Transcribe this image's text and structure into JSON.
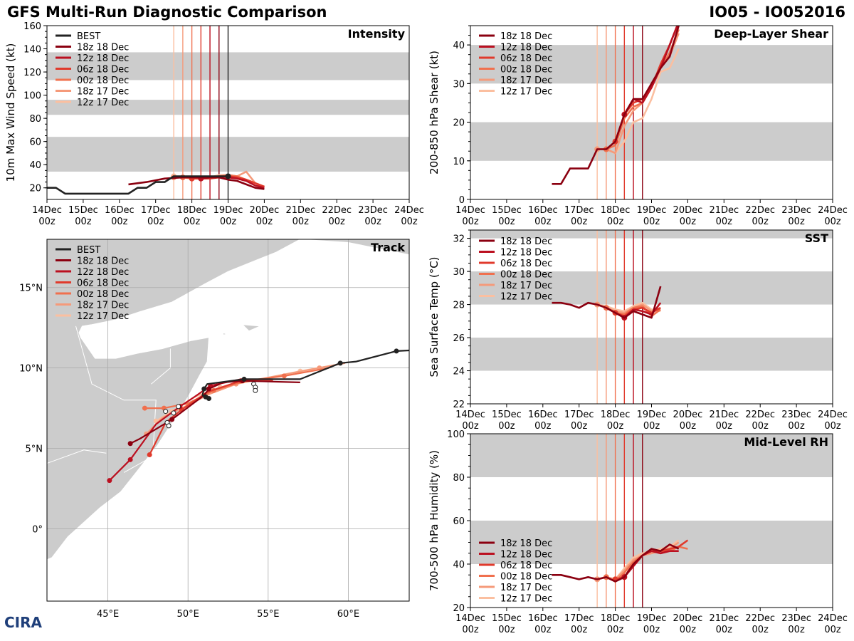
{
  "header": {
    "title": "GFS Multi-Run Diagnostic Comparison",
    "storm": "IO05 - IO052016"
  },
  "logo": {
    "text": "CIRA"
  },
  "colors": {
    "best": "#222222",
    "runs": [
      "#8b0010",
      "#bb1020",
      "#e03a2c",
      "#f0704e",
      "#f59a7a",
      "#fbbfa0"
    ],
    "band": "#cccccc"
  },
  "time_ticks": [
    "14Dec\n00z",
    "15Dec\n00z",
    "16Dec\n00z",
    "17Dec\n00z",
    "18Dec\n00z",
    "19Dec\n00z",
    "20Dec\n00z",
    "21Dec\n00z",
    "22Dec\n00z",
    "23Dec\n00z",
    "24Dec\n00z"
  ],
  "run_labels": [
    "18z 18 Dec",
    "12z 18 Dec",
    "06z 18 Dec",
    "00z 18 Dec",
    "18z 17 Dec",
    "12z 17 Dec"
  ],
  "chart_data": [
    {
      "id": "intensity",
      "type": "line",
      "title": "Intensity",
      "xlabel": "",
      "ylabel": "10m Max Wind Speed (kt)",
      "xlim": [
        0,
        10
      ],
      "ylim": [
        10,
        160
      ],
      "yticks": [
        20,
        40,
        60,
        80,
        100,
        120,
        140,
        160
      ],
      "bands": [
        [
          34,
          64
        ],
        [
          83,
          96
        ],
        [
          113,
          137
        ]
      ],
      "init_lines_days": [
        3.5,
        3.75,
        4.0,
        4.25,
        4.5,
        4.75
      ],
      "best_marker_day": 5.0,
      "legend_labels": [
        "BEST",
        "18z 18 Dec",
        "12z 18 Dec",
        "06z 18 Dec",
        "00z 18 Dec",
        "18z 17 Dec",
        "12z 17 Dec"
      ],
      "series": [
        {
          "name": "BEST",
          "x": [
            0,
            0.25,
            0.5,
            1.0,
            1.5,
            2.0,
            2.25,
            2.5,
            2.75,
            3.0,
            3.25,
            3.5,
            3.75,
            4.0,
            4.25,
            4.5,
            4.75,
            5.0
          ],
          "values": [
            20,
            20,
            15,
            15,
            15,
            15,
            15,
            20,
            20,
            25,
            25,
            30,
            30,
            30,
            30,
            30,
            30,
            30
          ]
        },
        {
          "name": "18z 18 Dec",
          "x": [
            2.25,
            2.75,
            3.25,
            3.75,
            4.25,
            4.75,
            5.0,
            5.25,
            5.5,
            5.75,
            6.0
          ],
          "values": [
            23,
            25,
            28,
            29,
            29,
            29,
            27,
            26,
            23,
            20,
            19
          ]
        },
        {
          "name": "12z 18 Dec",
          "x": [
            4.25,
            4.5,
            4.75,
            5.0,
            5.25,
            5.5,
            5.75,
            6.0
          ],
          "values": [
            28,
            29,
            30,
            29,
            28,
            26,
            22,
            20
          ]
        },
        {
          "name": "06z 18 Dec",
          "x": [
            4.0,
            4.25,
            4.5,
            4.75,
            5.0,
            5.25,
            5.5,
            5.75,
            6.0
          ],
          "values": [
            28,
            28,
            28,
            29,
            30,
            29,
            27,
            24,
            21
          ]
        },
        {
          "name": "00z 18 Dec",
          "x": [
            3.75,
            4.0,
            4.25,
            4.5,
            4.75,
            5.0,
            5.25,
            5.5,
            5.75,
            6.0
          ],
          "values": [
            29,
            28,
            28,
            29,
            30,
            31,
            30,
            27,
            24,
            21
          ]
        },
        {
          "name": "18z 17 Dec",
          "x": [
            3.5,
            3.75,
            4.0,
            4.25,
            4.5,
            4.75,
            5.0,
            5.25,
            5.5,
            5.75,
            6.0
          ],
          "values": [
            29,
            29,
            29,
            29,
            29,
            30,
            31,
            30,
            34,
            24,
            21
          ]
        },
        {
          "name": "12z 17 Dec",
          "x": [
            3.5,
            3.75,
            4.0,
            4.25,
            4.5,
            4.75,
            5.0,
            5.25,
            5.5,
            5.75
          ],
          "values": [
            30,
            29,
            29,
            29,
            29,
            31,
            31,
            29,
            27,
            24
          ]
        }
      ]
    },
    {
      "id": "shear",
      "type": "line",
      "title": "Deep-Layer Shear",
      "xlabel": "",
      "ylabel": "200-850 hPa Shear (kt)",
      "xlim": [
        0,
        10
      ],
      "ylim": [
        0,
        45
      ],
      "yticks": [
        0,
        10,
        20,
        30,
        40
      ],
      "bands": [
        [
          10,
          20
        ],
        [
          30,
          40
        ]
      ],
      "init_lines_days": [
        3.5,
        3.75,
        4.0,
        4.25,
        4.5,
        4.75
      ],
      "legend_labels": [
        "18z 18 Dec",
        "12z 18 Dec",
        "06z 18 Dec",
        "00z 18 Dec",
        "18z 17 Dec",
        "12z 17 Dec"
      ],
      "series": [
        {
          "name": "18z 18 Dec",
          "x": [
            2.25,
            2.5,
            2.75,
            3.0,
            3.25,
            3.5,
            3.75,
            4.0,
            4.25,
            4.5,
            4.75,
            5.0,
            5.25,
            5.5,
            5.75
          ],
          "values": [
            4,
            4,
            8,
            8,
            8,
            13,
            13,
            15,
            22,
            26,
            26,
            30,
            34,
            37,
            45
          ]
        },
        {
          "name": "12z 18 Dec",
          "x": [
            4.25,
            4.5,
            4.75,
            5.0,
            5.25,
            5.5,
            5.75
          ],
          "values": [
            22,
            26,
            25,
            29,
            34,
            40,
            46
          ]
        },
        {
          "name": "06z 18 Dec",
          "x": [
            4.0,
            4.25,
            4.5,
            4.75,
            5.0,
            5.25,
            5.5,
            5.75
          ],
          "values": [
            15,
            22,
            25,
            26,
            29,
            35,
            40,
            46
          ]
        },
        {
          "name": "00z 18 Dec",
          "x": [
            3.75,
            4.0,
            4.25,
            4.5,
            4.75,
            5.0,
            5.25,
            5.5,
            5.75
          ],
          "values": [
            13,
            14,
            21,
            24,
            25,
            30,
            34,
            38,
            44
          ]
        },
        {
          "name": "18z 17 Dec",
          "x": [
            3.5,
            3.75,
            4.0,
            4.25,
            4.5,
            4.75,
            5.0,
            5.25,
            5.5,
            5.75
          ],
          "values": [
            13,
            13,
            12,
            19,
            23,
            25,
            29,
            34,
            37,
            43
          ]
        },
        {
          "name": "12z 17 Dec",
          "x": [
            3.5,
            3.75,
            4.0,
            4.25,
            4.5,
            4.75,
            5.0,
            5.25,
            5.5,
            5.75
          ],
          "values": [
            13,
            13,
            12,
            15,
            20,
            21,
            26,
            33,
            34,
            39
          ]
        }
      ]
    },
    {
      "id": "sst",
      "type": "line",
      "title": "SST",
      "xlabel": "",
      "ylabel": "Sea Surface Temp (°C)",
      "xlim": [
        0,
        10
      ],
      "ylim": [
        22,
        32.5
      ],
      "yticks": [
        22,
        24,
        26,
        28,
        30,
        32
      ],
      "bands": [
        [
          24,
          26
        ],
        [
          28,
          30
        ],
        [
          32,
          32.5
        ]
      ],
      "init_lines_days": [
        3.5,
        3.75,
        4.0,
        4.25,
        4.5,
        4.75
      ],
      "legend_labels": [
        "18z 18 Dec",
        "12z 18 Dec",
        "06z 18 Dec",
        "00z 18 Dec",
        "18z 17 Dec",
        "12z 17 Dec"
      ],
      "series": [
        {
          "name": "18z 18 Dec",
          "x": [
            2.25,
            2.5,
            2.75,
            3.0,
            3.25,
            3.5,
            3.75,
            4.0,
            4.25,
            4.5,
            4.75,
            5.0,
            5.25
          ],
          "values": [
            28.1,
            28.1,
            28.0,
            27.8,
            28.1,
            28.0,
            27.8,
            27.5,
            27.2,
            27.6,
            27.4,
            27.2,
            29.1
          ]
        },
        {
          "name": "12z 18 Dec",
          "x": [
            4.25,
            4.5,
            4.75,
            5.0,
            5.25
          ],
          "values": [
            27.2,
            27.7,
            27.6,
            27.4,
            28.1
          ]
        },
        {
          "name": "06z 18 Dec",
          "x": [
            4.0,
            4.25,
            4.5,
            4.75,
            5.0,
            5.25
          ],
          "values": [
            27.5,
            27.3,
            27.7,
            27.8,
            27.5,
            27.8
          ]
        },
        {
          "name": "00z 18 Dec",
          "x": [
            3.75,
            4.0,
            4.25,
            4.5,
            4.75,
            5.0,
            5.25
          ],
          "values": [
            27.8,
            27.5,
            27.4,
            27.8,
            27.9,
            27.3,
            27.7
          ]
        },
        {
          "name": "18z 17 Dec",
          "x": [
            3.5,
            3.75,
            4.0,
            4.25,
            4.5,
            4.75,
            5.0,
            5.25
          ],
          "values": [
            28.0,
            27.8,
            27.6,
            27.5,
            27.8,
            28.0,
            27.6,
            27.8
          ]
        },
        {
          "name": "12z 17 Dec",
          "x": [
            3.5,
            3.75,
            4.0,
            4.25,
            4.5,
            4.75,
            5.0,
            5.25
          ],
          "values": [
            28.0,
            27.9,
            27.7,
            27.6,
            27.9,
            28.1,
            27.7,
            27.6
          ]
        }
      ]
    },
    {
      "id": "rh",
      "type": "line",
      "title": "Mid-Level RH",
      "xlabel": "",
      "ylabel": "700-500 hPa Humidity (%)",
      "xlim": [
        0,
        10
      ],
      "ylim": [
        20,
        100
      ],
      "yticks": [
        20,
        40,
        60,
        80,
        100
      ],
      "bands": [
        [
          40,
          60
        ],
        [
          80,
          100
        ]
      ],
      "init_lines_days": [
        3.5,
        3.75,
        4.0,
        4.25,
        4.5,
        4.75
      ],
      "legend_labels": [
        "18z 18 Dec",
        "12z 18 Dec",
        "06z 18 Dec",
        "00z 18 Dec",
        "18z 17 Dec",
        "12z 17 Dec"
      ],
      "series": [
        {
          "name": "18z 18 Dec",
          "x": [
            2.25,
            2.5,
            2.75,
            3.0,
            3.25,
            3.5,
            3.75,
            4.0,
            4.25,
            4.5,
            4.75,
            5.0,
            5.25,
            5.5,
            5.75
          ],
          "values": [
            35,
            35,
            34,
            33,
            34,
            33,
            34,
            32,
            34,
            40,
            44,
            47,
            46,
            49,
            47
          ]
        },
        {
          "name": "12z 18 Dec",
          "x": [
            4.25,
            4.5,
            4.75,
            5.0,
            5.25,
            5.5,
            5.75
          ],
          "values": [
            34,
            39,
            44,
            46,
            45,
            46,
            46
          ]
        },
        {
          "name": "06z 18 Dec",
          "x": [
            4.0,
            4.25,
            4.5,
            4.75,
            5.0,
            5.25,
            5.5,
            5.75,
            6.0
          ],
          "values": [
            33,
            34,
            40,
            44,
            46,
            46,
            47,
            48,
            51
          ]
        },
        {
          "name": "00z 18 Dec",
          "x": [
            3.75,
            4.0,
            4.25,
            4.5,
            4.75,
            5.0,
            5.25,
            5.5,
            5.75,
            6.0
          ],
          "values": [
            34,
            32,
            36,
            41,
            44,
            46,
            46,
            46,
            48,
            47
          ]
        },
        {
          "name": "18z 17 Dec",
          "x": [
            3.5,
            3.75,
            4.0,
            4.25,
            4.5,
            4.75,
            5.0,
            5.25,
            5.5,
            5.75
          ],
          "values": [
            33,
            34,
            33,
            37,
            42,
            44,
            45,
            46,
            47,
            50
          ]
        },
        {
          "name": "12z 17 Dec",
          "x": [
            3.5,
            3.75,
            4.0,
            4.25,
            4.5,
            4.75,
            5.0,
            5.25,
            5.5,
            5.75
          ],
          "values": [
            33,
            34,
            33,
            38,
            43,
            45,
            46,
            47,
            48,
            51
          ]
        }
      ]
    },
    {
      "id": "track",
      "type": "scatter",
      "title": "Track",
      "xlabel": "",
      "ylabel": "",
      "xlim": [
        41.2,
        63.8
      ],
      "ylim": [
        -4.5,
        18
      ],
      "xtick_values": [
        45,
        50,
        55,
        60
      ],
      "xtick_labels": [
        "45°E",
        "50°E",
        "55°E",
        "60°E"
      ],
      "ytick_values": [
        0,
        5,
        10,
        15
      ],
      "ytick_labels": [
        "0°",
        "5°N",
        "10°N",
        "15°N"
      ],
      "legend_labels": [
        "BEST",
        "18z 18 Dec",
        "12z 18 Dec",
        "06z 18 Dec",
        "00z 18 Dec",
        "18z 17 Dec",
        "12z 17 Dec"
      ],
      "series": [
        {
          "name": "BEST",
          "lon": [
            64.0,
            63.0,
            60.5,
            59.5,
            57.0,
            53.5,
            51.2,
            51.0,
            50.9,
            51.1,
            51.3
          ],
          "lat": [
            11.1,
            11.05,
            10.4,
            10.3,
            9.3,
            9.3,
            9.0,
            8.7,
            8.3,
            8.2,
            8.1
          ],
          "open_points": []
        },
        {
          "name": "18z 18 Dec",
          "lon": [
            57.0,
            53.4,
            52.2,
            51.3,
            51.0,
            49.0,
            47.0,
            46.4
          ],
          "lat": [
            9.1,
            9.2,
            9.1,
            8.7,
            8.3,
            6.8,
            5.6,
            5.3
          ],
          "open_points": []
        },
        {
          "name": "12z 18 Dec",
          "lon": [
            53.3,
            51.4,
            50.4,
            49.5,
            48.0,
            46.4,
            45.1
          ],
          "lat": [
            9.3,
            8.9,
            8.2,
            7.6,
            6.5,
            4.3,
            3.0
          ],
          "open_points": []
        },
        {
          "name": "06z 18 Dec",
          "lon": [
            55.3,
            53.3,
            51.2,
            49.6,
            48.6,
            47.6
          ],
          "lat": [
            9.2,
            9.2,
            8.5,
            7.4,
            6.6,
            4.6
          ],
          "open_points": []
        },
        {
          "name": "00z 18 Dec",
          "lon": [
            58.8,
            56.0,
            53.6,
            51.6,
            50.0,
            48.5,
            47.3
          ],
          "lat": [
            10.0,
            9.5,
            9.2,
            8.6,
            7.8,
            7.5,
            7.5
          ],
          "open_points": []
        },
        {
          "name": "18z 17 Dec",
          "lon": [
            59.8,
            58.2,
            55.0,
            53.0,
            51.4,
            50.0,
            48.4,
            47.4
          ],
          "lat": [
            10.3,
            10.0,
            9.4,
            9.0,
            8.4,
            7.7,
            6.9,
            5.9
          ],
          "open_points": []
        },
        {
          "name": "12z 17 Dec",
          "lon": [
            59.8,
            57.0,
            54.0,
            52.0,
            50.4,
            49.0,
            48.0
          ],
          "lat": [
            10.3,
            9.8,
            9.2,
            8.8,
            8.2,
            7.3,
            6.7
          ],
          "open_points": []
        },
        {
          "name": "BEST-analysis-points",
          "lon": [
            54.1,
            54.2,
            54.2,
            49.4,
            48.6,
            49.1,
            48.7,
            48.8
          ],
          "lat": [
            9.0,
            8.8,
            8.6,
            7.6,
            7.3,
            7.2,
            6.6,
            6.4
          ],
          "open_points": [
            0,
            1,
            2,
            3,
            4,
            5,
            6,
            7
          ]
        }
      ]
    }
  ]
}
